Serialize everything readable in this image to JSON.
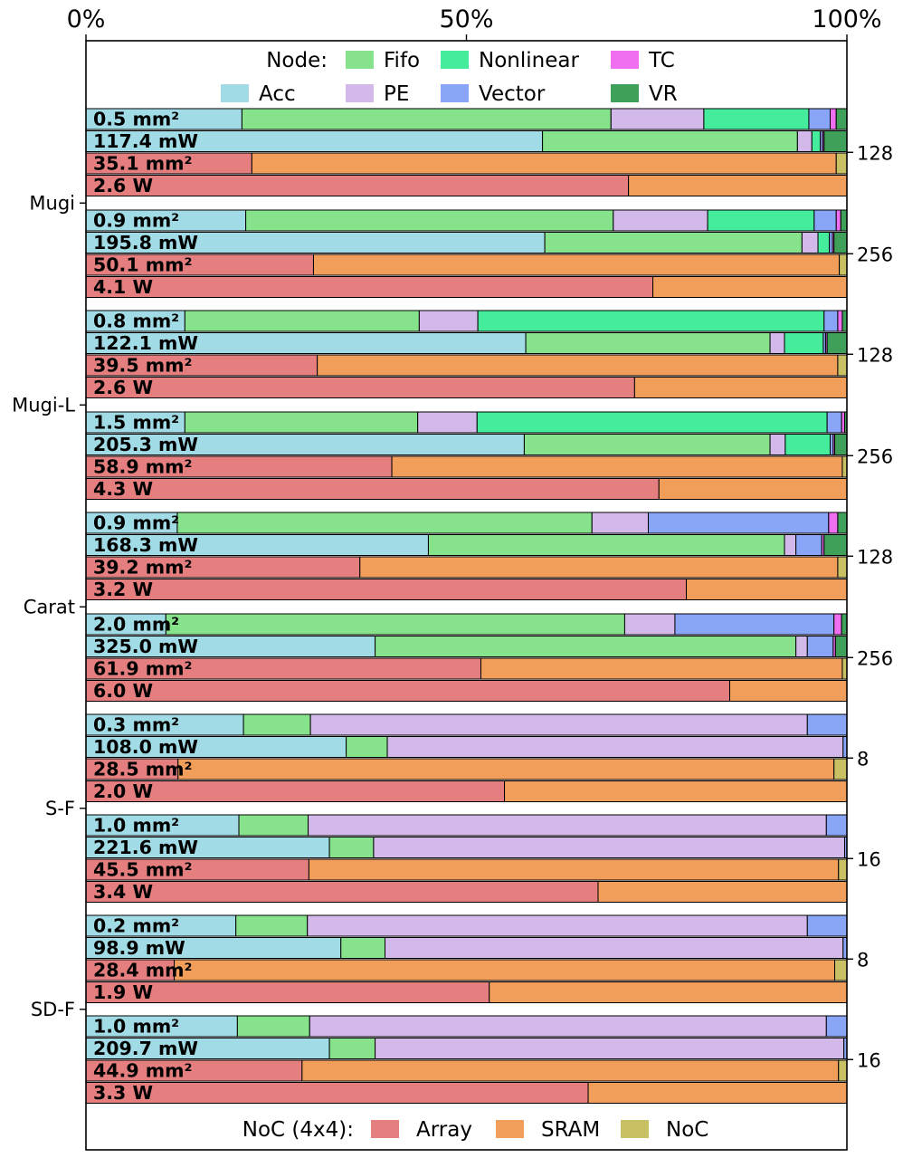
{
  "chart_data": {
    "type": "bar",
    "orientation": "horizontal-stacked-percent",
    "title": "",
    "xlabel": "",
    "ylabel": "",
    "xlim": [
      0,
      100
    ],
    "x_ticks": [
      "0%",
      "50%",
      "100%"
    ],
    "group_labels": [
      "Mugi",
      "Mugi-L",
      "Carat",
      "S-F",
      "SD-F"
    ],
    "node_legend": {
      "title": "Node:",
      "items": [
        {
          "name": "Fifo",
          "color": "#86e38c"
        },
        {
          "name": "Nonlinear",
          "color": "#44ec9c"
        },
        {
          "name": "TC",
          "color": "#f06ef0"
        },
        {
          "name": "Acc",
          "color": "#a1dce6"
        },
        {
          "name": "PE",
          "color": "#d3b9ea"
        },
        {
          "name": "Vector",
          "color": "#88a5f8"
        },
        {
          "name": "VR",
          "color": "#3fa05a"
        }
      ]
    },
    "noc_legend": {
      "title": "NoC (4x4):",
      "items": [
        {
          "name": "Array",
          "color": "#e57f7f"
        },
        {
          "name": "SRAM",
          "color": "#f29e5b"
        },
        {
          "name": "NoC",
          "color": "#c9c063"
        }
      ]
    },
    "node_series_order": [
      "Acc",
      "Fifo",
      "PE",
      "Nonlinear",
      "Vector",
      "TC",
      "VR"
    ],
    "noc_series_order": [
      "Array",
      "SRAM",
      "NoC"
    ],
    "configs": [
      {
        "group": "Mugi",
        "size": "128",
        "bars": [
          {
            "label": "0.5 mm²",
            "kind": "node",
            "values": [
              20.5,
              48.5,
              12.2,
              13.8,
              2.8,
              0.8,
              1.4
            ]
          },
          {
            "label": "117.4 mW",
            "kind": "node",
            "values": [
              60.0,
              33.5,
              1.9,
              1.1,
              0.3,
              0.2,
              3.0
            ]
          },
          {
            "label": "35.1 mm²",
            "kind": "noc",
            "values": [
              21.8,
              76.8,
              1.4
            ]
          },
          {
            "label": "2.6 W",
            "kind": "noc",
            "values": [
              71.3,
              28.7,
              0.0
            ]
          }
        ]
      },
      {
        "group": "Mugi",
        "size": "256",
        "bars": [
          {
            "label": "0.9 mm²",
            "kind": "node",
            "values": [
              21.0,
              48.3,
              12.4,
              14.0,
              2.9,
              0.6,
              0.8
            ]
          },
          {
            "label": "195.8 mW",
            "kind": "node",
            "values": [
              60.3,
              33.8,
              2.1,
              1.5,
              0.4,
              0.2,
              1.7
            ]
          },
          {
            "label": "50.1 mm²",
            "kind": "noc",
            "values": [
              29.9,
              69.1,
              1.0
            ]
          },
          {
            "label": "4.1 W",
            "kind": "noc",
            "values": [
              74.5,
              25.5,
              0.0
            ]
          }
        ]
      },
      {
        "group": "Mugi-L",
        "size": "128",
        "bars": [
          {
            "label": "0.8 mm²",
            "kind": "node",
            "values": [
              13.0,
              30.8,
              7.7,
              45.5,
              1.8,
              0.6,
              0.6
            ]
          },
          {
            "label": "122.1 mW",
            "kind": "node",
            "values": [
              57.8,
              32.1,
              1.9,
              5.1,
              0.3,
              0.2,
              2.6
            ]
          },
          {
            "label": "39.5 mm²",
            "kind": "noc",
            "values": [
              30.4,
              68.4,
              1.2
            ]
          },
          {
            "label": "2.6 W",
            "kind": "noc",
            "values": [
              72.1,
              27.9,
              0.0
            ]
          }
        ]
      },
      {
        "group": "Mugi-L",
        "size": "256",
        "bars": [
          {
            "label": "1.5 mm²",
            "kind": "node",
            "values": [
              13.0,
              30.6,
              7.8,
              46.0,
              1.9,
              0.4,
              0.3
            ]
          },
          {
            "label": "205.3 mW",
            "kind": "node",
            "values": [
              57.6,
              32.3,
              2.0,
              5.9,
              0.4,
              0.2,
              1.6
            ]
          },
          {
            "label": "58.9 mm²",
            "kind": "noc",
            "values": [
              40.2,
              59.2,
              0.6
            ]
          },
          {
            "label": "4.3 W",
            "kind": "noc",
            "values": [
              75.3,
              24.7,
              0.0
            ]
          }
        ]
      },
      {
        "group": "Carat",
        "size": "128",
        "bars": [
          {
            "label": "0.9 mm²",
            "kind": "node",
            "values": [
              12.0,
              54.5,
              7.4,
              0.0,
              23.7,
              1.2,
              1.2
            ]
          },
          {
            "label": "168.3 mW",
            "kind": "node",
            "values": [
              45.0,
              46.8,
              1.5,
              0.0,
              3.4,
              0.3,
              3.0
            ]
          },
          {
            "label": "39.2 mm²",
            "kind": "noc",
            "values": [
              36.0,
              62.8,
              1.2
            ]
          },
          {
            "label": "3.2 W",
            "kind": "noc",
            "values": [
              78.9,
              21.1,
              0.0
            ]
          }
        ]
      },
      {
        "group": "Carat",
        "size": "256",
        "bars": [
          {
            "label": "2.0 mm²",
            "kind": "node",
            "values": [
              10.5,
              60.3,
              6.6,
              0.0,
              20.9,
              1.0,
              0.7
            ]
          },
          {
            "label": "325.0 mW",
            "kind": "node",
            "values": [
              38.0,
              55.3,
              1.5,
              0.0,
              3.4,
              0.3,
              1.5
            ]
          },
          {
            "label": "61.9 mm²",
            "kind": "noc",
            "values": [
              51.9,
              47.5,
              0.6
            ]
          },
          {
            "label": "6.0 W",
            "kind": "noc",
            "values": [
              84.6,
              15.4,
              0.0
            ]
          }
        ]
      },
      {
        "group": "S-F",
        "size": "8",
        "bars": [
          {
            "label": "0.3 mm²",
            "kind": "node",
            "values": [
              20.7,
              8.8,
              65.3,
              0.0,
              5.2,
              0.0,
              0.0
            ]
          },
          {
            "label": "108.0 mW",
            "kind": "node",
            "values": [
              34.2,
              5.4,
              59.9,
              0.0,
              0.5,
              0.0,
              0.0
            ]
          },
          {
            "label": "28.5 mm²",
            "kind": "noc",
            "values": [
              12.1,
              86.2,
              1.7
            ]
          },
          {
            "label": "2.0 W",
            "kind": "noc",
            "values": [
              55.0,
              45.0,
              0.0
            ]
          }
        ]
      },
      {
        "group": "S-F",
        "size": "16",
        "bars": [
          {
            "label": "1.0 mm²",
            "kind": "node",
            "values": [
              20.1,
              9.1,
              68.1,
              0.0,
              2.7,
              0.0,
              0.0
            ]
          },
          {
            "label": "221.6 mW",
            "kind": "node",
            "values": [
              32.0,
              5.8,
              61.9,
              0.0,
              0.3,
              0.0,
              0.0
            ]
          },
          {
            "label": "45.5 mm²",
            "kind": "noc",
            "values": [
              29.3,
              69.6,
              1.1
            ]
          },
          {
            "label": "3.4 W",
            "kind": "noc",
            "values": [
              67.3,
              32.7,
              0.0
            ]
          }
        ]
      },
      {
        "group": "SD-F",
        "size": "8",
        "bars": [
          {
            "label": "0.2 mm²",
            "kind": "node",
            "values": [
              19.7,
              9.4,
              65.7,
              0.0,
              5.2,
              0.0,
              0.0
            ]
          },
          {
            "label": "98.9 mW",
            "kind": "node",
            "values": [
              33.5,
              5.8,
              60.2,
              0.0,
              0.5,
              0.0,
              0.0
            ]
          },
          {
            "label": "28.4 mm²",
            "kind": "noc",
            "values": [
              11.6,
              86.8,
              1.6
            ]
          },
          {
            "label": "1.9 W",
            "kind": "noc",
            "values": [
              53.0,
              47.0,
              0.0
            ]
          }
        ]
      },
      {
        "group": "SD-F",
        "size": "16",
        "bars": [
          {
            "label": "1.0 mm²",
            "kind": "node",
            "values": [
              19.9,
              9.5,
              67.9,
              0.0,
              2.7,
              0.0,
              0.0
            ]
          },
          {
            "label": "209.7 mW",
            "kind": "node",
            "values": [
              32.0,
              6.0,
              61.6,
              0.0,
              0.4,
              0.0,
              0.0
            ]
          },
          {
            "label": "44.9 mm²",
            "kind": "noc",
            "values": [
              28.4,
              70.5,
              1.1
            ]
          },
          {
            "label": "3.3 W",
            "kind": "noc",
            "values": [
              66.0,
              34.0,
              0.0
            ]
          }
        ]
      }
    ]
  }
}
